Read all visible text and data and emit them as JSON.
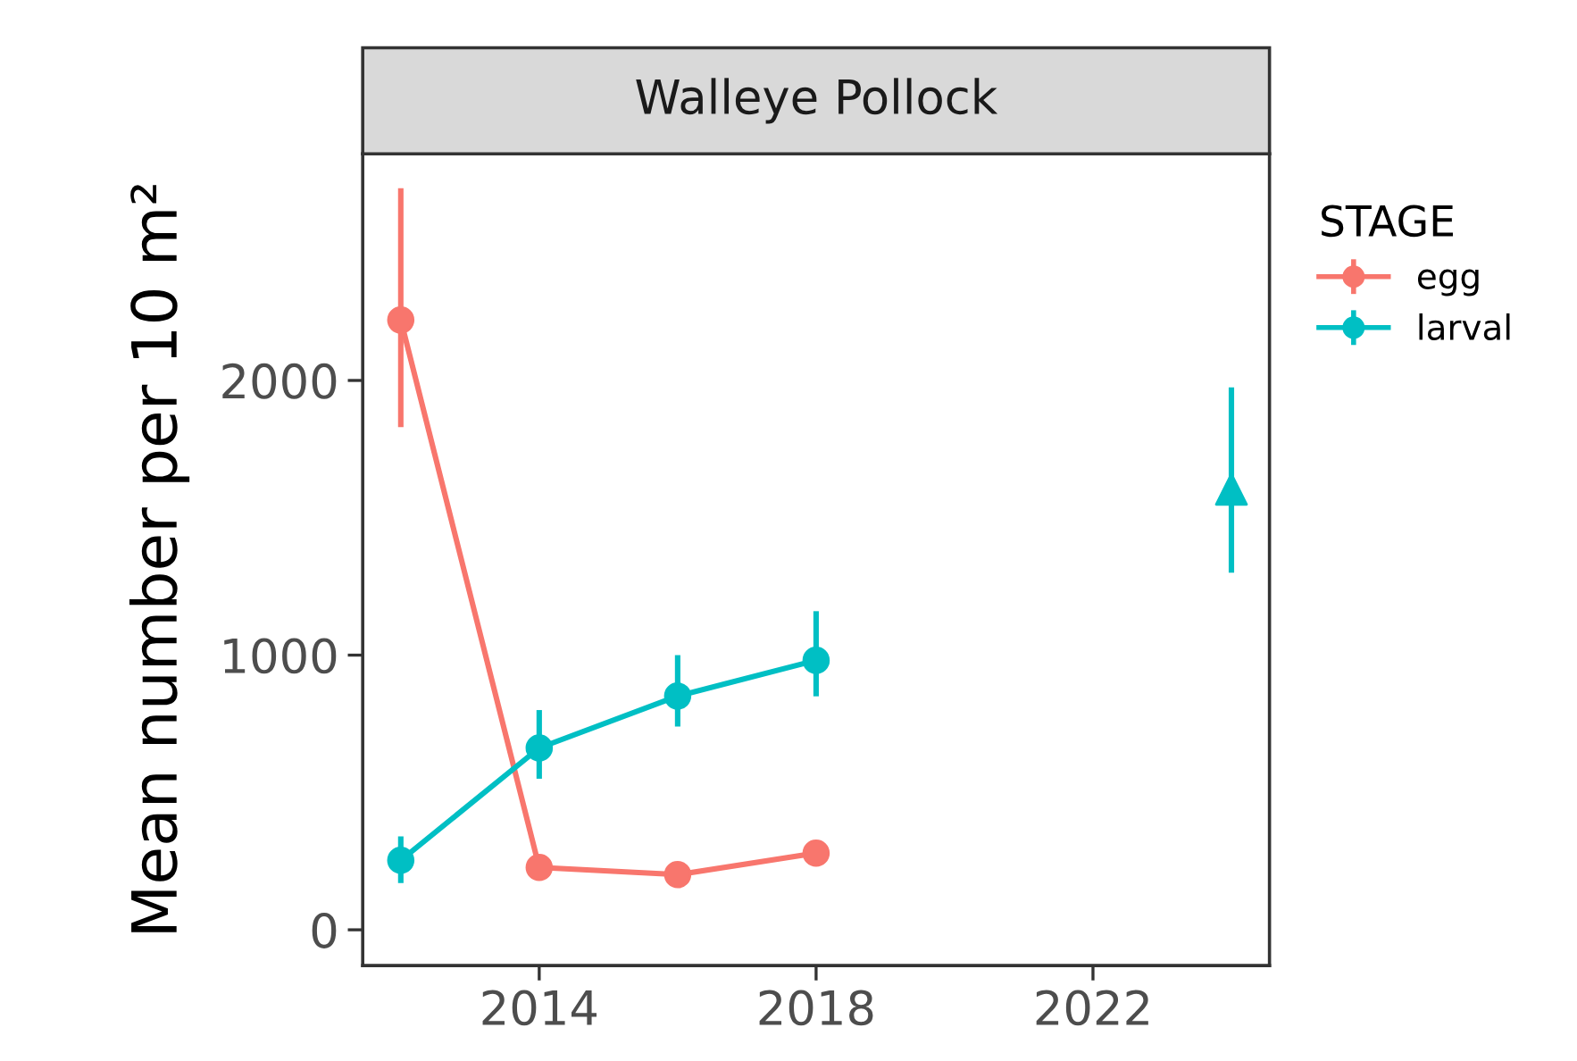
{
  "chart_data": {
    "type": "line",
    "title": "Walleye Pollock",
    "ylabel": "Mean number per 10 m²",
    "legend_title": "STAGE",
    "legend": "right",
    "grid": false,
    "marker": "circle",
    "xlim": [
      2011.45,
      2024.55
    ],
    "xticks": [
      2014,
      2018,
      2022
    ],
    "ylim": [
      -130,
      2825
    ],
    "yticks": [
      0,
      1000,
      2000
    ],
    "series": [
      {
        "name": "egg",
        "color": "#f8766d",
        "x": [
          2012,
          2014,
          2016,
          2018
        ],
        "values": [
          2220,
          227,
          201,
          279
        ],
        "errors": [
          [
            1830,
            2700
          ],
          null,
          null,
          null
        ]
      },
      {
        "name": "larval",
        "color": "#00bfc4",
        "x": [
          2012,
          2014,
          2016,
          2018
        ],
        "values": [
          253,
          662,
          851,
          981
        ],
        "errors": [
          [
            170,
            340
          ],
          [
            550,
            800
          ],
          [
            740,
            1000
          ],
          [
            850,
            1160
          ]
        ]
      },
      {
        "type": "scatter",
        "marker": "triangle",
        "color": "#00bfc4",
        "x": [
          2024
        ],
        "values": [
          1604
        ],
        "errors": [
          [
            1300,
            1975
          ]
        ]
      }
    ]
  }
}
